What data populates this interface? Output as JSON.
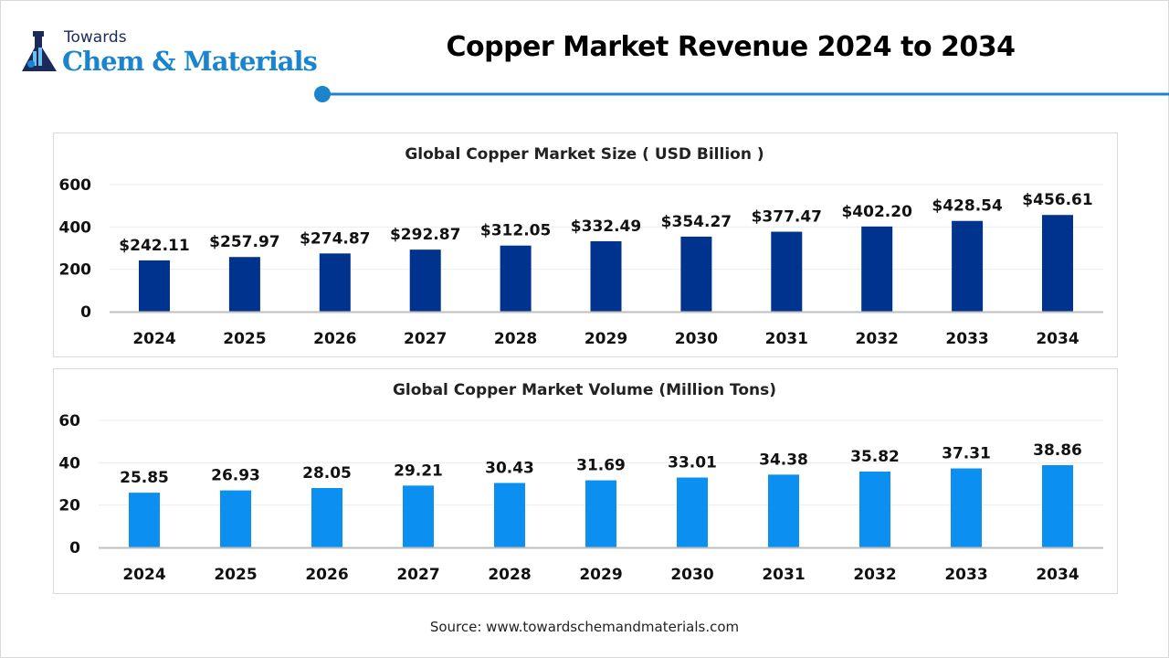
{
  "brand": {
    "line1": "Towards",
    "line2": "Chem & Materials",
    "accent": "#1a84cc",
    "dark": "#1c2a5a"
  },
  "title": "Copper Market Revenue 2024 to 2034",
  "source": "Source: www.towardschemandmaterials.com",
  "chart_data": [
    {
      "type": "bar",
      "title": "Global Copper Market Size ( USD Billion )",
      "categories": [
        "2024",
        "2025",
        "2026",
        "2027",
        "2028",
        "2029",
        "2030",
        "2031",
        "2032",
        "2033",
        "2034"
      ],
      "values": [
        242.11,
        257.97,
        274.87,
        292.87,
        312.05,
        332.49,
        354.27,
        377.47,
        402.2,
        428.54,
        456.61
      ],
      "data_labels": [
        "$242.11",
        "$257.97",
        "$274.87",
        "$292.87",
        "$312.05",
        "$332.49",
        "$354.27",
        "$377.47",
        "$402.20",
        "$428.54",
        "$456.61"
      ],
      "yticks": [
        "0",
        "200",
        "400",
        "600"
      ],
      "ylim": [
        0,
        600
      ],
      "grid": true,
      "color": "#00338d"
    },
    {
      "type": "bar",
      "title": "Global Copper Market Volume (Million Tons)",
      "categories": [
        "2024",
        "2025",
        "2026",
        "2027",
        "2028",
        "2029",
        "2030",
        "2031",
        "2032",
        "2033",
        "2034"
      ],
      "values": [
        25.85,
        26.93,
        28.05,
        29.21,
        30.43,
        31.69,
        33.01,
        34.38,
        35.82,
        37.31,
        38.86
      ],
      "data_labels": [
        "25.85",
        "26.93",
        "28.05",
        "29.21",
        "30.43",
        "31.69",
        "33.01",
        "34.38",
        "35.82",
        "37.31",
        "38.86"
      ],
      "yticks": [
        "0",
        "20",
        "40",
        "60"
      ],
      "ylim": [
        0,
        60
      ],
      "grid": true,
      "color": "#0b8ff0"
    }
  ]
}
